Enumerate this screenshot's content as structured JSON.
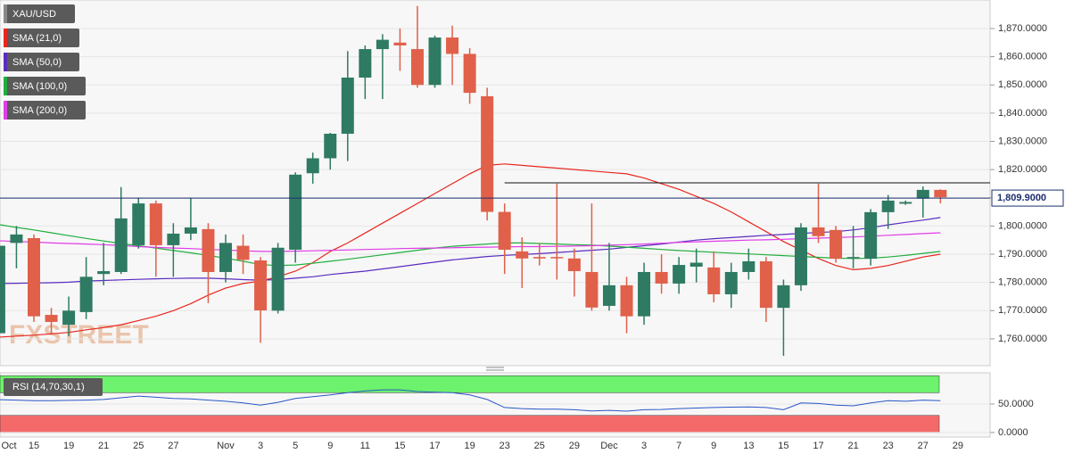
{
  "chart_data": [
    {
      "type": "candlestick",
      "categories": [
        "Oct",
        null,
        "15",
        null,
        "19",
        null,
        "21",
        null,
        "25",
        null,
        "27",
        null,
        null,
        "Nov",
        null,
        "3",
        null,
        "5",
        null,
        "9",
        null,
        "11",
        null,
        "15",
        null,
        "17",
        null,
        "19",
        null,
        "23",
        null,
        "25",
        null,
        "29",
        null,
        "Dec",
        null,
        "3",
        null,
        "7",
        null,
        "9",
        null,
        "13",
        null,
        "15",
        null,
        "17",
        null,
        "21",
        null,
        "23",
        null,
        "27",
        null,
        "29"
      ],
      "ohlc": {
        "name": "XAU/USD",
        "up_color": "#2f7a63",
        "down_color": "#e0604a",
        "open": [
          1762,
          1794,
          1795.7,
          1768.5,
          1765,
          1769.5,
          1783,
          1783.7,
          1793.2,
          1808,
          1793.2,
          1797.3,
          1798.9,
          1783.7,
          1793,
          1787.8,
          1770,
          1791.6,
          1818.7,
          1824,
          1832.7,
          1852.6,
          1862.7,
          1865,
          1862.7,
          1850,
          1866.8,
          1861,
          1846,
          1805,
          1791,
          1789,
          1789,
          1788.5,
          1783.7,
          1771.7,
          1779,
          1768,
          1783.7,
          1779.6,
          1785.6,
          1785.3,
          1775.8,
          1783.7,
          1787.5,
          1771,
          1779,
          1799.5,
          1798.6,
          1788.7,
          1788.4,
          1804.9,
          1807.9,
          1809.7,
          1812.8,
          null
        ],
        "high": [
          1795,
          1800,
          1797,
          1771,
          1775,
          1789,
          1794,
          1813.8,
          1810,
          1809,
          1801,
          1810,
          1801,
          1797,
          1797,
          1789,
          1794,
          1819,
          1826,
          1833,
          1862,
          1864,
          1868,
          1870,
          1878,
          1867.5,
          1871,
          1863,
          1849,
          1808,
          1796,
          1794,
          1815,
          1792,
          1808,
          1794,
          1782,
          1787,
          1790,
          1789,
          1792,
          1791,
          1787,
          1792,
          1789,
          1781,
          1801,
          1815,
          1800,
          1800,
          1806,
          1811,
          1809,
          1814,
          1813,
          null
        ],
        "low": [
          1760,
          1785,
          1766,
          1762,
          1761,
          1767,
          1779,
          1783,
          1792,
          1782,
          1782,
          1795,
          1772.7,
          1780,
          1783,
          1758.6,
          1769,
          1787,
          1815,
          1820,
          1823,
          1845,
          1845,
          1855,
          1849,
          1849,
          1850,
          1843.3,
          1802,
          1783,
          1778,
          1786,
          1781,
          1775,
          1770,
          1770,
          1762,
          1765,
          1776,
          1776,
          1780,
          1773,
          1771,
          1781,
          1766,
          1754,
          1777,
          1794,
          1787,
          1785,
          1786,
          1799,
          1807.5,
          1803,
          1808,
          null
        ],
        "close": [
          1793,
          1797,
          1768,
          1766,
          1770,
          1782,
          1784,
          1802.7,
          1808,
          1793.2,
          1797.3,
          1799.5,
          1783.7,
          1794,
          1788,
          1770.1,
          1792.3,
          1818.2,
          1824,
          1832.7,
          1852.6,
          1862.7,
          1866,
          1864,
          1850,
          1866.8,
          1861,
          1847.2,
          1805,
          1791.6,
          1788.5,
          1788.5,
          1788.8,
          1784,
          1771.1,
          1779,
          1768,
          1783.7,
          1779.6,
          1786.2,
          1787,
          1775.8,
          1783.7,
          1787.5,
          1771,
          1779,
          1799.5,
          1796.4,
          1788.4,
          1789,
          1804.9,
          1809,
          1808.5,
          1812.8,
          1810.2,
          null
        ]
      },
      "series": [
        {
          "name": "SMA (21,0)",
          "color": "#e8261e",
          "values": [
            1760.6,
            1761,
            1761.3,
            1761.8,
            1762.3,
            1763.2,
            1764,
            1765,
            1766.5,
            1768,
            1770,
            1772.5,
            1775.5,
            1778,
            1779.6,
            1780.5,
            1782,
            1784,
            1787,
            1791,
            1794,
            1797.5,
            1801,
            1804.5,
            1808,
            1811.5,
            1815,
            1818.5,
            1821.5,
            1822,
            1821.5,
            1821,
            1820.5,
            1820,
            1819.5,
            1819,
            1818.5,
            1817,
            1815,
            1813,
            1810.5,
            1808,
            1805,
            1801.5,
            1798,
            1794.5,
            1791.5,
            1788.5,
            1786,
            1784.5,
            1785,
            1786,
            1787.5,
            1789,
            1790,
            null
          ]
        },
        {
          "name": "SMA (50,0)",
          "color": "#5a2cc0",
          "values": [
            1779.6,
            1779.7,
            1779.8,
            1779.9,
            1780.1,
            1780.5,
            1780.7,
            1780.9,
            1781.1,
            1781.3,
            1781.4,
            1781.5,
            1781.5,
            1781.3,
            1781,
            1780.8,
            1781,
            1781.5,
            1782,
            1782.8,
            1783.4,
            1784,
            1784.8,
            1785.6,
            1786.4,
            1787.2,
            1788,
            1788.6,
            1789.2,
            1789.6,
            1789.9,
            1790.2,
            1790.6,
            1791,
            1791.4,
            1791.8,
            1792.4,
            1793,
            1793.6,
            1794.3,
            1795,
            1795.5,
            1795.9,
            1796.3,
            1796.7,
            1797,
            1797.4,
            1797.7,
            1798,
            1798.6,
            1799.4,
            1800.4,
            1801.3,
            1802.1,
            1803,
            null
          ]
        },
        {
          "name": "SMA (100,0)",
          "color": "#1fae3c",
          "values": [
            1800.5,
            1799.5,
            1798.6,
            1797.6,
            1796.6,
            1795.6,
            1794.7,
            1793.8,
            1793,
            1792.2,
            1791.3,
            1790.5,
            1789.6,
            1788.6,
            1787.5,
            1786.3,
            1786,
            1786.2,
            1786.8,
            1787.5,
            1788.2,
            1789,
            1789.8,
            1790.6,
            1791.4,
            1792.2,
            1792.8,
            1793.2,
            1793.6,
            1794,
            1794,
            1793.8,
            1793.6,
            1793.4,
            1793.2,
            1792.9,
            1792.5,
            1792.1,
            1791.7,
            1791.3,
            1791,
            1790.7,
            1790.4,
            1790.1,
            1789.8,
            1789.5,
            1789.2,
            1788.9,
            1788.6,
            1788.5,
            1788.6,
            1789,
            1789.6,
            1790.3,
            1791,
            null
          ]
        },
        {
          "name": "SMA (200,0)",
          "color": "#e03ce8",
          "values": [
            1794.8,
            1794.5,
            1794.3,
            1794,
            1793.8,
            1793.6,
            1793.4,
            1793.1,
            1792.7,
            1792.4,
            1792.2,
            1792,
            1791.7,
            1791.5,
            1791.2,
            1791,
            1791,
            1791.1,
            1791.2,
            1791.4,
            1791.5,
            1791.7,
            1791.8,
            1792,
            1792.1,
            1792.2,
            1792.3,
            1792.4,
            1792.5,
            1792.6,
            1792.7,
            1792.7,
            1792.8,
            1792.9,
            1793,
            1793.2,
            1793.4,
            1793.6,
            1793.9,
            1794.2,
            1794.4,
            1794.6,
            1794.8,
            1795,
            1795.1,
            1795.3,
            1795.5,
            1795.7,
            1795.9,
            1796.1,
            1796.4,
            1796.7,
            1797,
            1797.3,
            1797.6,
            null
          ]
        }
      ],
      "resistance": {
        "value": 1815.3,
        "start_index": 29,
        "color": "#111111"
      },
      "last_price": {
        "value": 1809.9,
        "label": "1,809.9000",
        "color": "#1c2f6e"
      },
      "watermark": "FXSTREET",
      "ylim": [
        1750.5,
        1880.1
      ],
      "yticks": [
        {
          "value": 1760,
          "label": "1,760.0000"
        },
        {
          "value": 1770,
          "label": "1,770.0000"
        },
        {
          "value": 1780,
          "label": "1,780.0000"
        },
        {
          "value": 1790,
          "label": "1,790.0000"
        },
        {
          "value": 1800,
          "label": "1,800.0000"
        },
        {
          "value": 1810,
          "label": "1,810.0000"
        },
        {
          "value": 1820,
          "label": "1,820.0000"
        },
        {
          "value": 1830,
          "label": "1,830.0000"
        },
        {
          "value": 1840,
          "label": "1,840.0000"
        },
        {
          "value": 1850,
          "label": "1,850.0000"
        },
        {
          "value": 1860,
          "label": "1,860.0000"
        },
        {
          "value": 1870,
          "label": "1,870.0000"
        }
      ],
      "grid": true
    },
    {
      "type": "line",
      "name": "RSI (14,70,30,1)",
      "color": "#2a56c6",
      "values": [
        57.8,
        57,
        56,
        56,
        56.5,
        57,
        58,
        61,
        64,
        62,
        60,
        59,
        57,
        55,
        52,
        48,
        53,
        60,
        63,
        66,
        70,
        73,
        75,
        75,
        72,
        71,
        70,
        66,
        58,
        44,
        42,
        41,
        41,
        40,
        38,
        39,
        37.5,
        40,
        40.5,
        42,
        43,
        44,
        44.5,
        45,
        44,
        40,
        52,
        51,
        48,
        47,
        52,
        56,
        55,
        57,
        56,
        null
      ],
      "bands": [
        {
          "from": 70,
          "to": 100,
          "color": "#6cf26c"
        },
        {
          "from": 0,
          "to": 30,
          "color": "#f46a6a"
        }
      ],
      "ylim": [
        -8,
        105
      ],
      "yticks": [
        {
          "value": 0,
          "label": "0.0000"
        },
        {
          "value": 50,
          "label": "50.0000"
        }
      ],
      "grid": true
    }
  ]
}
